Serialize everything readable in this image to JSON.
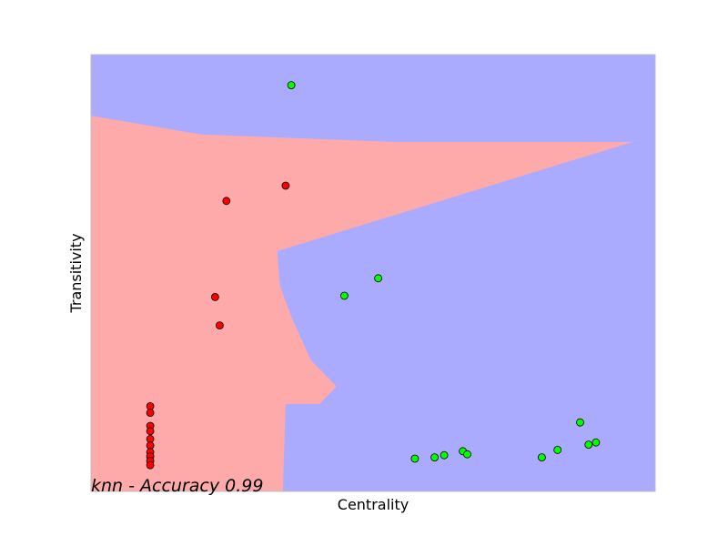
{
  "chart_data": {
    "type": "scatter",
    "title": "",
    "xlabel": "Centrality",
    "ylabel": "Transitivity",
    "annotation": "knn - Accuracy 0.99",
    "xlim": [
      0,
      1
    ],
    "ylim": [
      0,
      1
    ],
    "grid": false,
    "ticks_visible": false,
    "colors": {
      "class_red_region": "#ffaaaa",
      "class_green_region": "#aaaaff",
      "class_red_point": "#ff0000",
      "class_green_point": "#00ff00",
      "point_edge": "#000000",
      "axes_frame": "#bfbfbf"
    },
    "decision_regions": [
      {
        "class": "red",
        "boundary": [
          [
            0.0,
            0.86
          ],
          [
            0.195,
            0.817
          ],
          [
            0.54,
            0.8
          ],
          [
            0.96,
            0.8
          ],
          [
            0.33,
            0.55
          ],
          [
            0.335,
            0.47
          ],
          [
            0.355,
            0.4
          ],
          [
            0.39,
            0.3
          ],
          [
            0.435,
            0.24
          ],
          [
            0.405,
            0.2
          ],
          [
            0.345,
            0.2
          ],
          [
            0.34,
            0.0
          ],
          [
            0.0,
            0.0
          ]
        ]
      }
    ],
    "series": [
      {
        "class": "red",
        "points": [
          [
            0.24,
            0.665
          ],
          [
            0.345,
            0.7
          ],
          [
            0.22,
            0.445
          ],
          [
            0.228,
            0.38
          ],
          [
            0.105,
            0.195
          ],
          [
            0.105,
            0.18
          ],
          [
            0.105,
            0.15
          ],
          [
            0.105,
            0.138
          ],
          [
            0.105,
            0.12
          ],
          [
            0.105,
            0.105
          ],
          [
            0.105,
            0.09
          ],
          [
            0.105,
            0.08
          ],
          [
            0.105,
            0.07
          ],
          [
            0.105,
            0.06
          ]
        ]
      },
      {
        "class": "green",
        "points": [
          [
            0.355,
            0.93
          ],
          [
            0.449,
            0.448
          ],
          [
            0.509,
            0.488
          ],
          [
            0.574,
            0.075
          ],
          [
            0.609,
            0.078
          ],
          [
            0.626,
            0.083
          ],
          [
            0.659,
            0.092
          ],
          [
            0.667,
            0.085
          ],
          [
            0.799,
            0.078
          ],
          [
            0.827,
            0.095
          ],
          [
            0.867,
            0.158
          ],
          [
            0.882,
            0.107
          ],
          [
            0.895,
            0.112
          ]
        ]
      }
    ]
  }
}
